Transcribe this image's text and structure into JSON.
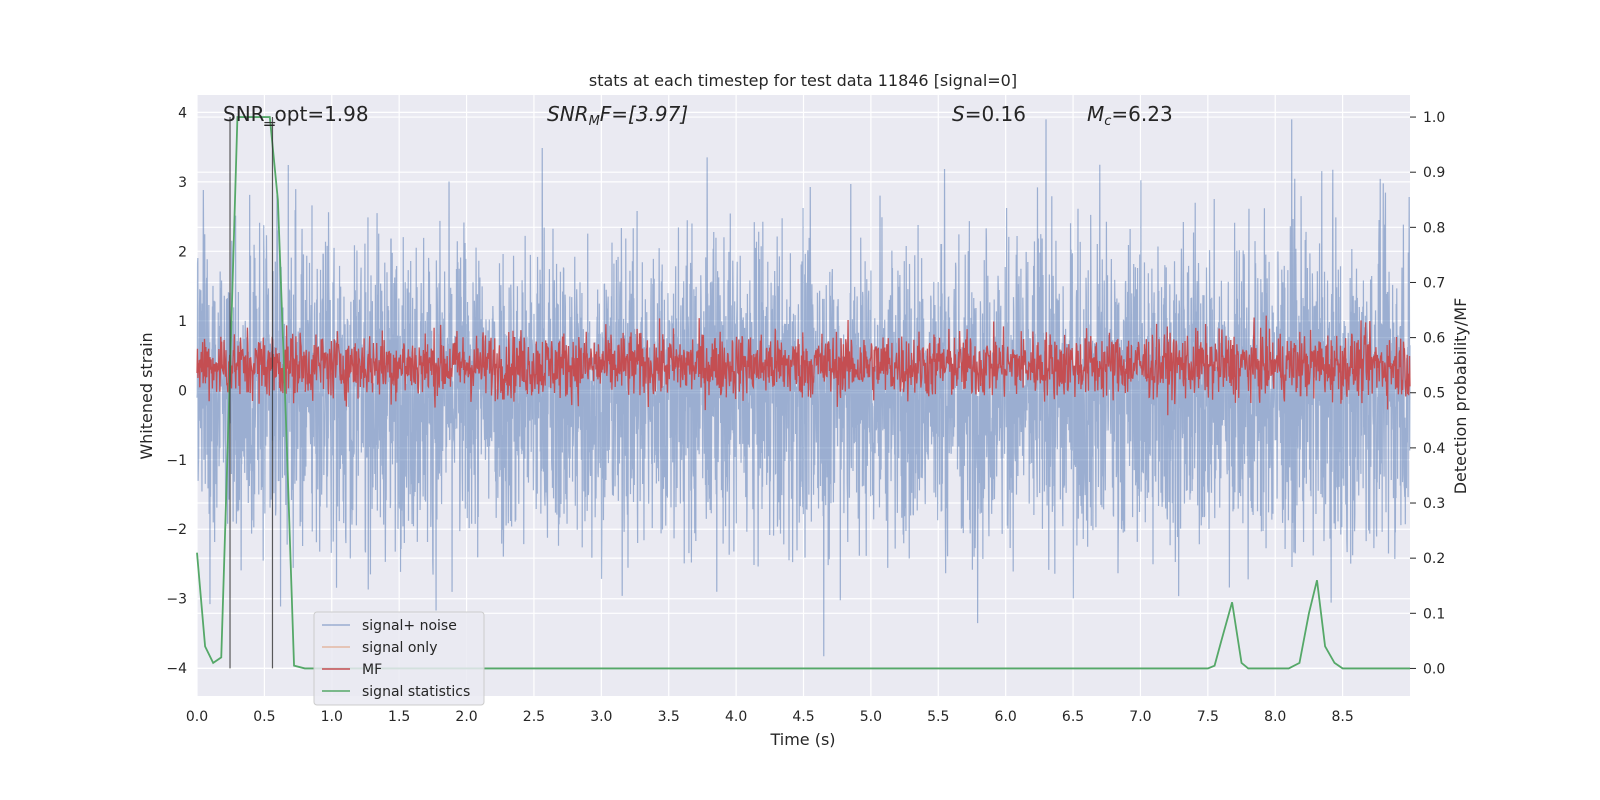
{
  "chart_data": {
    "type": "line",
    "title": "stats at each timestep for test data 11846 [signal=0]",
    "xlabel": "Time (s)",
    "ylabel": "Whitened strain",
    "y2label": "Detection probability/MF",
    "xlim": [
      0.0,
      9.0
    ],
    "ylim": [
      -4.4,
      4.25
    ],
    "y2lim": [
      -0.05,
      1.04
    ],
    "x_ticks": [
      "0.0",
      "0.5",
      "1.0",
      "1.5",
      "2.0",
      "2.5",
      "3.0",
      "3.5",
      "4.0",
      "4.5",
      "5.0",
      "5.5",
      "6.0",
      "6.5",
      "7.0",
      "7.5",
      "8.0",
      "8.5"
    ],
    "y_ticks": [
      "−4",
      "−3",
      "−2",
      "−1",
      "0",
      "1",
      "2",
      "3",
      "4"
    ],
    "y2_ticks": [
      "0.0",
      "0.1",
      "0.2",
      "0.3",
      "0.4",
      "0.5",
      "0.6",
      "0.7",
      "0.8",
      "0.9",
      "1.0"
    ],
    "grid": true,
    "legend_position": "lower-left",
    "annotations": {
      "snr_opt": "SNR_opt=1.98",
      "snr_mf_main": "SNR",
      "snr_mf_sub": "M",
      "snr_mf_rest": "F=[3.97]",
      "s_main": "S",
      "s_rest": "=0.16",
      "mc_main": "M",
      "mc_sub": "c",
      "mc_rest": "=6.23"
    },
    "series": [
      {
        "name": "signal+ noise",
        "color": "#4c72b0",
        "noise_range": [
          -4.0,
          3.9
        ]
      },
      {
        "name": "signal only",
        "color": "#dd8452",
        "values": []
      },
      {
        "name": "MF",
        "color": "#c44e52",
        "noise_range": [
          -0.05,
          1.0
        ]
      },
      {
        "name": "signal statistics",
        "color": "#55a868",
        "axis": "right",
        "x": [
          0.0,
          0.06,
          0.12,
          0.18,
          0.24,
          0.3,
          0.36,
          0.42,
          0.48,
          0.54,
          0.6,
          0.66,
          0.72,
          0.8,
          1.0,
          2.0,
          3.0,
          4.0,
          5.0,
          6.0,
          7.0,
          7.5,
          7.55,
          7.6,
          7.68,
          7.75,
          7.8,
          7.9,
          8.0,
          8.1,
          8.18,
          8.25,
          8.31,
          8.37,
          8.44,
          8.5,
          8.6,
          9.0
        ],
        "values": [
          0.21,
          0.04,
          0.01,
          0.02,
          0.5,
          1.0,
          1.0,
          1.0,
          1.0,
          1.0,
          0.85,
          0.45,
          0.005,
          0.0,
          0.0,
          0.0,
          0.0,
          0.0,
          0.0,
          0.0,
          0.0,
          0.0,
          0.005,
          0.05,
          0.12,
          0.01,
          0.0,
          0.0,
          0.0,
          0.0,
          0.01,
          0.1,
          0.16,
          0.04,
          0.01,
          0.0,
          0.0,
          0.0
        ]
      }
    ],
    "vertical_markers": [
      0.245,
      0.56
    ]
  }
}
